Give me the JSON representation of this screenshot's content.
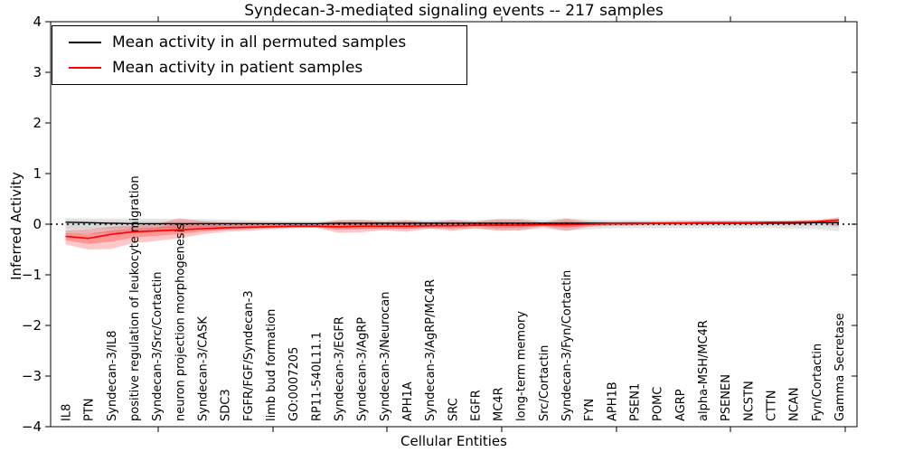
{
  "chart_data": {
    "type": "line",
    "title": "Syndecan-3-mediated signaling events -- 217 samples",
    "xlabel": "Cellular Entities",
    "ylabel": "Inferred Activity",
    "ylim": [
      -4,
      4
    ],
    "yticks": [
      -4,
      -3,
      -2,
      -1,
      0,
      1,
      2,
      3,
      4
    ],
    "grid": false,
    "legend_position": "upper left",
    "zero_line": {
      "value": 0,
      "style": "dotted",
      "color": "#000000"
    },
    "categories": [
      "IL8",
      "PTN",
      "Syndecan-3/IL8",
      "positive regulation of leukocyte migration",
      "Syndecan-3/Src/Cortactin",
      "neuron projection morphogenesis",
      "Syndecan-3/CASK",
      "SDC3",
      "FGFR/FGF/Syndecan-3",
      "limb bud formation",
      "GO:0007205",
      "RP11-540L11.1",
      "Syndecan-3/EGFR",
      "Syndecan-3/AgRP",
      "Syndecan-3/Neurocan",
      "APH1A",
      "Syndecan-3/AgRP/MC4R",
      "SRC",
      "EGFR",
      "MC4R",
      "long-term memory",
      "Src/Cortactin",
      "Syndecan-3/Fyn/Cortactin",
      "FYN",
      "APH1B",
      "PSEN1",
      "POMC",
      "AGRP",
      "alpha-MSH/MC4R",
      "PSENEN",
      "NCSTN",
      "CTTN",
      "NCAN",
      "Fyn/Cortactin",
      "Gamma Secretase"
    ],
    "series": [
      {
        "name": "Mean activity in all permuted samples",
        "color": "#000000",
        "band_color": "#888888",
        "values": [
          0.04,
          0.03,
          0.02,
          0.01,
          0.01,
          0.01,
          0.01,
          0.01,
          0.01,
          0.01,
          0.01,
          0.01,
          0.02,
          0.02,
          0.02,
          0.02,
          0.02,
          0.02,
          0.02,
          0.02,
          0.02,
          0.02,
          0.02,
          0.02,
          0.02,
          0.02,
          0.02,
          0.02,
          0.02,
          0.02,
          0.02,
          0.02,
          0.02,
          0.03,
          0.03
        ],
        "band_upper": [
          0.12,
          0.11,
          0.11,
          0.11,
          0.11,
          0.1,
          0.1,
          0.09,
          0.08,
          0.07,
          0.06,
          0.06,
          0.08,
          0.08,
          0.09,
          0.08,
          0.08,
          0.09,
          0.08,
          0.1,
          0.11,
          0.08,
          0.12,
          0.09,
          0.08,
          0.08,
          0.08,
          0.08,
          0.08,
          0.08,
          0.08,
          0.08,
          0.08,
          0.09,
          0.1
        ],
        "band_lower": [
          -0.2,
          -0.19,
          -0.18,
          -0.17,
          -0.16,
          -0.14,
          -0.12,
          -0.1,
          -0.09,
          -0.08,
          -0.07,
          -0.07,
          -0.09,
          -0.09,
          -0.1,
          -0.09,
          -0.09,
          -0.1,
          -0.09,
          -0.11,
          -0.12,
          -0.09,
          -0.13,
          -0.1,
          -0.08,
          -0.08,
          -0.08,
          -0.08,
          -0.08,
          -0.08,
          -0.08,
          -0.08,
          -0.09,
          -0.1,
          -0.14
        ]
      },
      {
        "name": "Mean activity in patient samples",
        "color": "#ff0000",
        "band_color": "#ff0000",
        "values": [
          -0.24,
          -0.28,
          -0.2,
          -0.15,
          -0.13,
          -0.11,
          -0.09,
          -0.07,
          -0.06,
          -0.05,
          -0.04,
          -0.04,
          -0.05,
          -0.04,
          -0.04,
          -0.04,
          -0.03,
          -0.03,
          -0.02,
          -0.02,
          -0.02,
          -0.01,
          -0.01,
          0.0,
          0.01,
          0.01,
          0.02,
          0.02,
          0.03,
          0.03,
          0.03,
          0.04,
          0.04,
          0.05,
          0.08
        ],
        "band_upper": [
          -0.12,
          -0.1,
          -0.05,
          -0.02,
          0.0,
          0.12,
          0.06,
          0.03,
          0.03,
          0.02,
          0.01,
          0.01,
          0.08,
          0.09,
          0.05,
          0.08,
          0.04,
          0.08,
          0.05,
          0.1,
          0.09,
          0.03,
          0.11,
          0.05,
          0.04,
          0.05,
          0.05,
          0.06,
          0.06,
          0.06,
          0.06,
          0.06,
          0.07,
          0.08,
          0.14
        ],
        "band_lower": [
          -0.4,
          -0.5,
          -0.49,
          -0.37,
          -0.33,
          -0.28,
          -0.2,
          -0.15,
          -0.13,
          -0.1,
          -0.08,
          -0.07,
          -0.17,
          -0.16,
          -0.12,
          -0.15,
          -0.09,
          -0.13,
          -0.08,
          -0.13,
          -0.12,
          -0.05,
          -0.13,
          -0.05,
          -0.03,
          -0.02,
          -0.01,
          -0.01,
          0.0,
          0.0,
          0.0,
          0.01,
          0.02,
          0.02,
          -0.04
        ]
      }
    ]
  }
}
